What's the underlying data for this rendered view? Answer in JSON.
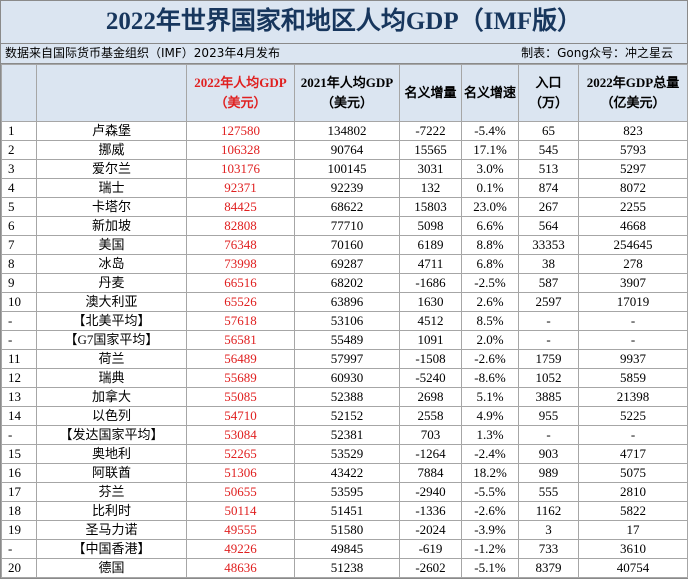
{
  "header": {
    "title": "2022年世界国家和地区人均GDP（IMF版）",
    "source": "数据来自国际货币基金组织（IMF）2023年4月发布",
    "author": "制表：Gong众号：冲之星云"
  },
  "table": {
    "columns": [
      [],
      [],
      [
        "2022年人均GDP",
        "（美元）"
      ],
      [
        "2021年人均GDP",
        "（美元）"
      ],
      [
        "名义增量"
      ],
      [
        "名义增速"
      ],
      [
        "入口",
        "（万）"
      ],
      [
        "2022年GDP总量",
        "（亿美元）"
      ]
    ],
    "rows": [
      [
        "1",
        "卢森堡",
        "127580",
        "134802",
        "-7222",
        "-5.4%",
        "65",
        "823"
      ],
      [
        "2",
        "挪威",
        "106328",
        "90764",
        "15565",
        "17.1%",
        "545",
        "5793"
      ],
      [
        "3",
        "爱尔兰",
        "103176",
        "100145",
        "3031",
        "3.0%",
        "513",
        "5297"
      ],
      [
        "4",
        "瑞士",
        "92371",
        "92239",
        "132",
        "0.1%",
        "874",
        "8072"
      ],
      [
        "5",
        "卡塔尔",
        "84425",
        "68622",
        "15803",
        "23.0%",
        "267",
        "2255"
      ],
      [
        "6",
        "新加坡",
        "82808",
        "77710",
        "5098",
        "6.6%",
        "564",
        "4668"
      ],
      [
        "7",
        "美国",
        "76348",
        "70160",
        "6189",
        "8.8%",
        "33353",
        "254645"
      ],
      [
        "8",
        "冰岛",
        "73998",
        "69287",
        "4711",
        "6.8%",
        "38",
        "278"
      ],
      [
        "9",
        "丹麦",
        "66516",
        "68202",
        "-1686",
        "-2.5%",
        "587",
        "3907"
      ],
      [
        "10",
        "澳大利亚",
        "65526",
        "63896",
        "1630",
        "2.6%",
        "2597",
        "17019"
      ],
      [
        "-",
        "【北美平均】",
        "57618",
        "53106",
        "4512",
        "8.5%",
        "-",
        "-"
      ],
      [
        "-",
        "【G7国家平均】",
        "56581",
        "55489",
        "1091",
        "2.0%",
        "-",
        "-"
      ],
      [
        "11",
        "荷兰",
        "56489",
        "57997",
        "-1508",
        "-2.6%",
        "1759",
        "9937"
      ],
      [
        "12",
        "瑞典",
        "55689",
        "60930",
        "-5240",
        "-8.6%",
        "1052",
        "5859"
      ],
      [
        "13",
        "加拿大",
        "55085",
        "52388",
        "2698",
        "5.1%",
        "3885",
        "21398"
      ],
      [
        "14",
        "以色列",
        "54710",
        "52152",
        "2558",
        "4.9%",
        "955",
        "5225"
      ],
      [
        "-",
        "【发达国家平均】",
        "53084",
        "52381",
        "703",
        "1.3%",
        "-",
        "-"
      ],
      [
        "15",
        "奥地利",
        "52265",
        "53529",
        "-1264",
        "-2.4%",
        "903",
        "4717"
      ],
      [
        "16",
        "阿联酋",
        "51306",
        "43422",
        "7884",
        "18.2%",
        "989",
        "5075"
      ],
      [
        "17",
        "芬兰",
        "50655",
        "53595",
        "-2940",
        "-5.5%",
        "555",
        "2810"
      ],
      [
        "18",
        "比利时",
        "50114",
        "51451",
        "-1336",
        "-2.6%",
        "1162",
        "5822"
      ],
      [
        "19",
        "圣马力诺",
        "49555",
        "51580",
        "-2024",
        "-3.9%",
        "3",
        "17"
      ],
      [
        "-",
        "【中国香港】",
        "49226",
        "49845",
        "-619",
        "-1.2%",
        "733",
        "3610"
      ],
      [
        "20",
        "德国",
        "48636",
        "51238",
        "-2602",
        "-5.1%",
        "8379",
        "40754"
      ]
    ]
  }
}
